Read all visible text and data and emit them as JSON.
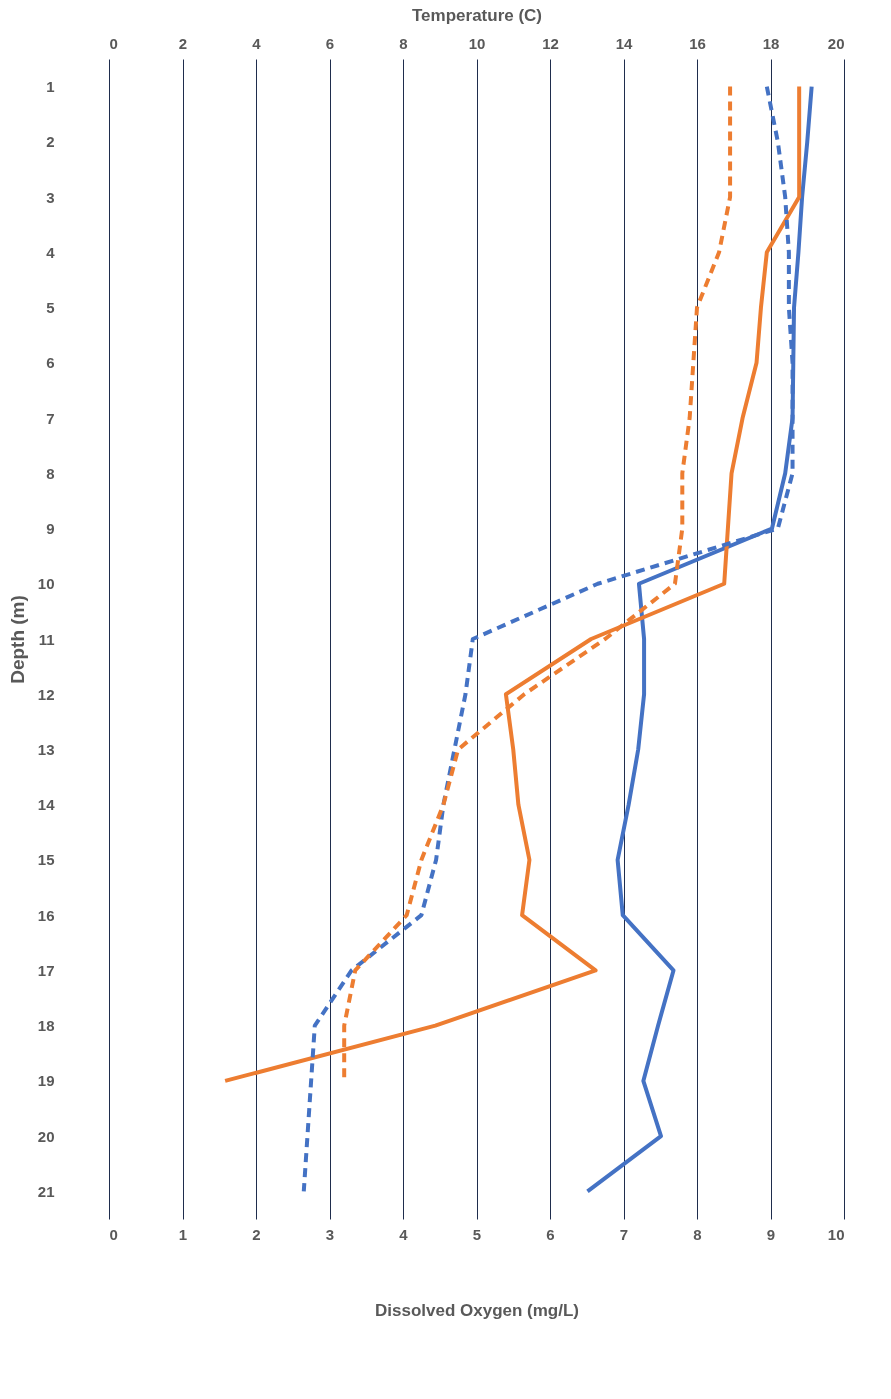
{
  "chart_data": {
    "type": "line",
    "xlabel": "Dissolved Oxygen (mg/L)",
    "x2label": "Temperature (C)",
    "ylabel": "Depth (m)",
    "xlim": [
      0,
      10
    ],
    "xticks": [
      0,
      1,
      2,
      3,
      4,
      5,
      6,
      7,
      8,
      9,
      10
    ],
    "x2lim": [
      0,
      20
    ],
    "x2ticks": [
      0,
      2,
      4,
      6,
      8,
      10,
      12,
      14,
      16,
      18,
      20
    ],
    "ylim": [
      21.5,
      0.5
    ],
    "yticks": [
      1,
      2,
      3,
      4,
      5,
      6,
      7,
      8,
      9,
      10,
      11,
      12,
      13,
      14,
      15,
      16,
      17,
      18,
      19,
      20,
      21
    ],
    "grid": "x",
    "marker": "none",
    "series": [
      {
        "color": "#4472c4",
        "line_style": "solid",
        "x": [
          9.56,
          9.5,
          9.43,
          9.38,
          9.32,
          9.31,
          9.3,
          9.2,
          9.02,
          7.21,
          7.28,
          7.28,
          7.2,
          7.07,
          6.92,
          6.99,
          7.68,
          7.47,
          7.27,
          7.51,
          6.51
        ],
        "values": [
          1,
          2,
          3,
          4,
          5,
          6,
          7,
          8,
          9,
          10,
          11,
          12,
          13,
          14,
          15,
          16,
          17,
          18,
          19,
          20,
          21
        ]
      },
      {
        "color": "#ed7d31",
        "line_style": "solid",
        "x": [
          9.39,
          9.39,
          9.39,
          8.95,
          8.87,
          8.81,
          8.62,
          8.47,
          8.42,
          8.37,
          6.56,
          5.4,
          5.5,
          5.57,
          5.72,
          5.62,
          6.62,
          4.44,
          1.58
        ],
        "values": [
          1,
          2,
          3,
          4,
          5,
          6,
          7,
          8,
          9,
          10,
          11,
          12,
          13,
          14,
          15,
          16,
          17,
          18,
          19
        ]
      },
      {
        "color": "#4472c4",
        "line_style": "dashed",
        "axis": "x2",
        "x": [
          17.9,
          18.2,
          18.4,
          18.5,
          18.5,
          18.6,
          18.6,
          18.6,
          18.2,
          13.3,
          9.9,
          9.7,
          9.4,
          9.1,
          8.9,
          8.5,
          6.6,
          5.6,
          5.5,
          5.4,
          5.3
        ],
        "values": [
          1,
          2,
          3,
          4,
          5,
          6,
          7,
          8,
          9,
          10,
          11,
          12,
          13,
          14,
          15,
          16,
          17,
          18,
          19,
          20,
          21
        ]
      },
      {
        "color": "#ed7d31",
        "line_style": "dashed",
        "axis": "x2",
        "x": [
          16.9,
          16.9,
          16.9,
          16.6,
          16,
          15.9,
          15.8,
          15.6,
          15.6,
          15.4,
          13.5,
          11.3,
          9.5,
          9.1,
          8.5,
          8.1,
          6.7,
          6.4,
          6.4
        ],
        "values": [
          1,
          2,
          3,
          4,
          5,
          6,
          7,
          8,
          9,
          10,
          11,
          12,
          13,
          14,
          15,
          16,
          17,
          18,
          19
        ]
      }
    ]
  }
}
